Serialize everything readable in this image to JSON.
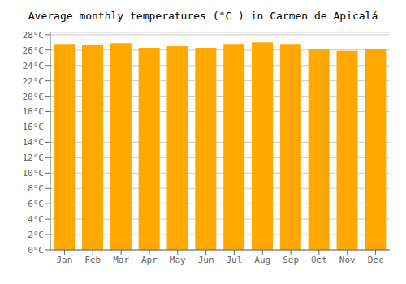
{
  "chart_data": {
    "type": "bar",
    "title": "Average monthly temperatures (°C ) in Carmen de Apicalá",
    "categories": [
      "Jan",
      "Feb",
      "Mar",
      "Apr",
      "May",
      "Jun",
      "Jul",
      "Aug",
      "Sep",
      "Oct",
      "Nov",
      "Dec"
    ],
    "values": [
      26.8,
      26.6,
      26.9,
      26.3,
      26.5,
      26.3,
      26.8,
      27.0,
      26.8,
      26.1,
      25.9,
      26.2
    ],
    "color": "#FFA800",
    "ylim": [
      0,
      28.3
    ],
    "yticks": [
      {
        "value": 0,
        "label": "0°C"
      },
      {
        "value": 2,
        "label": "2°C"
      },
      {
        "value": 4,
        "label": "4°C"
      },
      {
        "value": 6,
        "label": "6°C"
      },
      {
        "value": 8,
        "label": "8°C"
      },
      {
        "value": 10,
        "label": "10°C"
      },
      {
        "value": 12,
        "label": "12°C"
      },
      {
        "value": 14,
        "label": "14°C"
      },
      {
        "value": 16,
        "label": "16°C"
      },
      {
        "value": 18,
        "label": "18°C"
      },
      {
        "value": 20,
        "label": "20°C"
      },
      {
        "value": 22,
        "label": "22°C"
      },
      {
        "value": 24,
        "label": "24°C"
      },
      {
        "value": 26,
        "label": "26°C"
      },
      {
        "value": 28,
        "label": "28°C"
      }
    ],
    "grid": true
  }
}
